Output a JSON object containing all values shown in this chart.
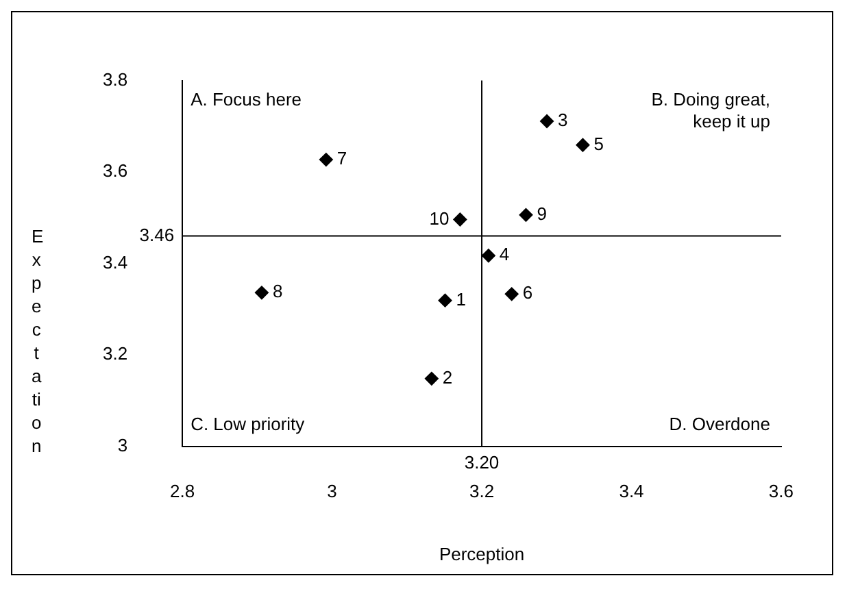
{
  "chart_data": {
    "type": "scatter",
    "xlabel": "Perception",
    "ylabel": "Expectation",
    "x": [
      3.151,
      3.133,
      3.287,
      3.209,
      3.335,
      3.24,
      2.992,
      2.906,
      3.259,
      3.171
    ],
    "values": [
      3.319,
      3.148,
      3.711,
      3.417,
      3.659,
      3.333,
      3.627,
      3.336,
      3.506,
      3.496
    ],
    "color": "#000000",
    "marker": "diamond",
    "grid": false,
    "legend": false,
    "xlim": [
      2.8,
      3.6
    ],
    "xticks": [
      2.8,
      3,
      3.2,
      3.4,
      3.6
    ],
    "ylim": [
      3,
      3.8
    ],
    "yticks": [
      3,
      3.2,
      3.4,
      3.6,
      3.8
    ],
    "ref_lines": [
      {
        "axis": "x",
        "value": 3.2,
        "label": "3.20"
      },
      {
        "axis": "y",
        "value": 3.46,
        "label": "3.46"
      }
    ],
    "annotations": [
      "A. Focus here",
      "B. Doing great, keep it up",
      "C. Low priority",
      "D. Overdone",
      {
        "text": "1",
        "x": 3.151,
        "y": 3.319
      },
      {
        "text": "2",
        "x": 3.133,
        "y": 3.148
      },
      {
        "text": "3",
        "x": 3.287,
        "y": 3.711
      },
      {
        "text": "4",
        "x": 3.209,
        "y": 3.417
      },
      {
        "text": "5",
        "x": 3.335,
        "y": 3.659
      },
      {
        "text": "6",
        "x": 3.24,
        "y": 3.333
      },
      {
        "text": "7",
        "x": 2.992,
        "y": 3.627
      },
      {
        "text": "8",
        "x": 2.906,
        "y": 3.336
      },
      {
        "text": "9",
        "x": 3.259,
        "y": 3.506
      },
      {
        "text": "10",
        "x": 3.171,
        "y": 3.496
      }
    ]
  }
}
